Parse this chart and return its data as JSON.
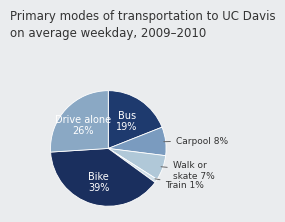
{
  "title": "Primary modes of transportation to UC Davis\non average weekday, 2009–2010",
  "slices": [
    "Bus",
    "Carpool",
    "Walk or\nskate",
    "Train",
    "Bike",
    "Drive alone"
  ],
  "values": [
    19,
    8,
    7,
    1,
    39,
    26
  ],
  "colors": [
    "#1e3a6e",
    "#7a9bbf",
    "#b0c8d8",
    "#d0e0ea",
    "#1a2f5e",
    "#8aa8c4"
  ],
  "background_color": "#eaecee",
  "title_fontsize": 8.5,
  "title_color": "#333333"
}
